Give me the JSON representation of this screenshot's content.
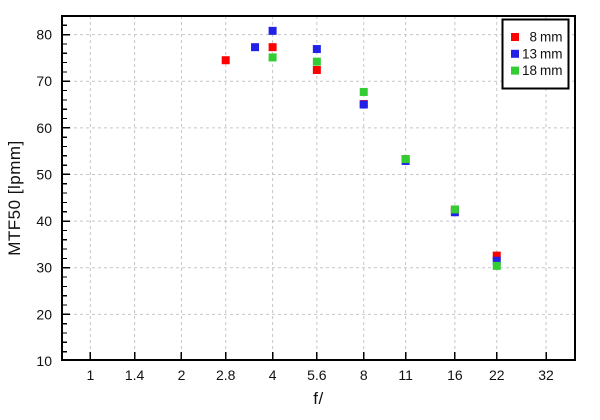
{
  "chart_data": {
    "type": "scatter",
    "title": "",
    "xlabel": "f/",
    "ylabel": "MTF50 [lpmm]",
    "x_scale": "log",
    "xlim": [
      0.8,
      40.2
    ],
    "ylim": [
      10,
      84.2
    ],
    "x_ticks": [
      "1",
      "1.4",
      "2",
      "2.8",
      "4",
      "5.6",
      "8",
      "11",
      "16",
      "22",
      "32"
    ],
    "x_tick_values": [
      1,
      1.4,
      2,
      2.8,
      4,
      5.6,
      8,
      11,
      16,
      22,
      32
    ],
    "y_ticks": [
      10,
      20,
      30,
      40,
      50,
      60,
      70,
      80
    ],
    "y_minor_step": 2,
    "grid": "dashed",
    "grid_color": "#c6c6c6",
    "axis_color": "#000000",
    "marker": "square",
    "marker_size_px": 8,
    "legend": {
      "position": "top-right",
      "border": true,
      "items": [
        "8 mm",
        "13 mm",
        "18 mm"
      ]
    },
    "series": [
      {
        "name": "8 mm",
        "color": "#ff0000",
        "points": [
          [
            2.8,
            74.5
          ],
          [
            4,
            77.3
          ],
          [
            5.6,
            72.4
          ],
          [
            8,
            65.1
          ],
          [
            11,
            53.3
          ],
          [
            16,
            42.4
          ],
          [
            22,
            32.6
          ]
        ]
      },
      {
        "name": "13 mm",
        "color": "#2121e8",
        "points": [
          [
            3.5,
            77.3
          ],
          [
            4,
            80.8
          ],
          [
            5.6,
            76.9
          ],
          [
            8,
            65.0
          ],
          [
            11,
            52.9
          ],
          [
            16,
            41.9
          ],
          [
            22,
            31.5
          ]
        ]
      },
      {
        "name": "18 mm",
        "color": "#33cc33",
        "points": [
          [
            4,
            75.1
          ],
          [
            5.6,
            74.2
          ],
          [
            8,
            67.7
          ],
          [
            11,
            53.3
          ],
          [
            16,
            42.5
          ],
          [
            22,
            30.4
          ]
        ]
      }
    ]
  }
}
